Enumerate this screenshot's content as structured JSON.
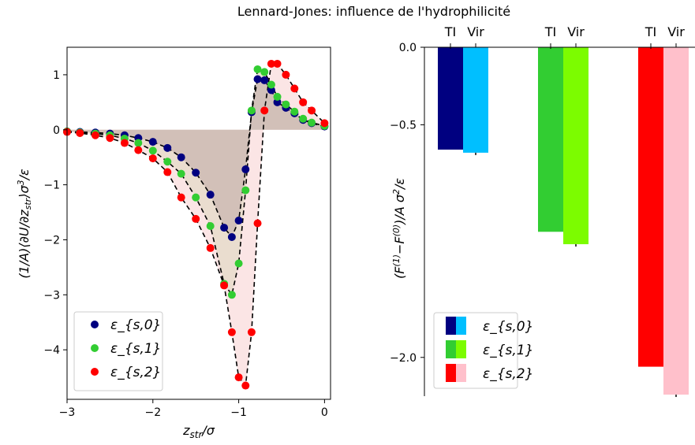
{
  "figure": {
    "title": "Lennard-Jones: influence de l'hydrophilicité"
  },
  "colors": {
    "s0": "#000080",
    "s1": "#32cd32",
    "s2": "#ff0000",
    "vir0": "#00bfff",
    "vir1": "#7cfc00",
    "vir2": "#ffc0cb",
    "fill0": "#c9b5b0",
    "fill1": "#e4d9c7",
    "fill2": "#f9dcdc"
  },
  "chart_data": [
    {
      "type": "scatter",
      "panel": "left",
      "xlabel": "z_str/σ",
      "ylabel": "(1/A)⟨∂U/∂z_str⟩σ³/ε",
      "xlim": [
        -3.0,
        0.07
      ],
      "ylim": [
        -4.9,
        1.5
      ],
      "xticks": [
        "−3",
        "−2",
        "−1",
        "0"
      ],
      "xtick_values": [
        -3,
        -2,
        -1,
        0
      ],
      "yticks": [
        "1",
        "0",
        "−1",
        "−2",
        "−3",
        "−4"
      ],
      "ytick_values": [
        1,
        0,
        -1,
        -2,
        -3,
        -4
      ],
      "legend": "lower-left",
      "series": [
        {
          "name": "ε_{s,0}",
          "x": [
            -3.0,
            -2.85,
            -2.67,
            -2.5,
            -2.33,
            -2.17,
            -2.0,
            -1.83,
            -1.67,
            -1.5,
            -1.33,
            -1.17,
            -1.08,
            -1.0,
            -0.92,
            -0.85,
            -0.78,
            -0.7,
            -0.62,
            -0.55,
            -0.45,
            -0.35,
            -0.25,
            -0.15,
            0.0
          ],
          "y": [
            -0.03,
            -0.04,
            -0.05,
            -0.07,
            -0.1,
            -0.15,
            -0.22,
            -0.33,
            -0.5,
            -0.78,
            -1.18,
            -1.78,
            -1.95,
            -1.65,
            -0.72,
            0.32,
            0.92,
            0.9,
            0.72,
            0.5,
            0.4,
            0.3,
            0.18,
            0.12,
            0.06
          ]
        },
        {
          "name": "ε_{s,1}",
          "x": [
            -3.0,
            -2.85,
            -2.67,
            -2.5,
            -2.33,
            -2.17,
            -2.0,
            -1.83,
            -1.67,
            -1.5,
            -1.33,
            -1.17,
            -1.08,
            -1.0,
            -0.92,
            -0.85,
            -0.78,
            -0.7,
            -0.62,
            -0.55,
            -0.45,
            -0.35,
            -0.25,
            -0.15,
            0.0
          ],
          "y": [
            -0.03,
            -0.05,
            -0.07,
            -0.1,
            -0.16,
            -0.24,
            -0.38,
            -0.58,
            -0.8,
            -1.23,
            -1.75,
            -2.8,
            -3.0,
            -2.43,
            -1.1,
            0.35,
            1.1,
            1.05,
            0.82,
            0.6,
            0.46,
            0.33,
            0.2,
            0.13,
            0.07
          ]
        },
        {
          "name": "ε_{s,2}",
          "x": [
            -3.0,
            -2.85,
            -2.67,
            -2.5,
            -2.33,
            -2.17,
            -2.0,
            -1.83,
            -1.67,
            -1.5,
            -1.33,
            -1.17,
            -1.08,
            -1.0,
            -0.92,
            -0.85,
            -0.78,
            -0.7,
            -0.62,
            -0.55,
            -0.45,
            -0.35,
            -0.25,
            -0.15,
            0.0
          ],
          "y": [
            -0.04,
            -0.06,
            -0.1,
            -0.15,
            -0.24,
            -0.37,
            -0.52,
            -0.77,
            -1.23,
            -1.62,
            -2.15,
            -2.83,
            -3.68,
            -4.5,
            -4.65,
            -3.68,
            -1.7,
            0.35,
            1.2,
            1.2,
            1.0,
            0.75,
            0.5,
            0.35,
            0.12
          ]
        }
      ]
    },
    {
      "type": "bar",
      "panel": "right",
      "ylabel": "(F^(1) − F^(0))/A σ²/ε",
      "ylim": [
        -2.25,
        0.0
      ],
      "yticks": [
        "0.0",
        "−0.5",
        "−2.0"
      ],
      "ytick_values": [
        0.0,
        -0.5,
        -2.0
      ],
      "top_labels": [
        "TI",
        "Vir",
        "TI",
        "Vir",
        "TI",
        "Vir"
      ],
      "legend": "lower-left",
      "series": [
        {
          "name": "ε_{s,0}",
          "TI": -0.66,
          "Vir": -0.68
        },
        {
          "name": "ε_{s,1}",
          "TI": -1.19,
          "Vir": -1.27
        },
        {
          "name": "ε_{s,2}",
          "TI": -2.06,
          "Vir": -2.24
        }
      ]
    }
  ]
}
